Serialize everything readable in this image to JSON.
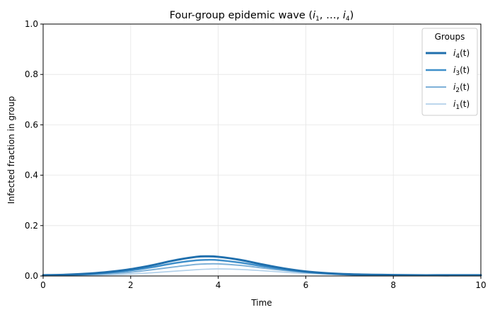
{
  "chart_data": {
    "type": "line",
    "title": "Four-group epidemic wave (",
    "title_math": [
      "i",
      "1",
      ", …, ",
      "i",
      "4",
      ")"
    ],
    "xlabel": "Time",
    "ylabel": "Infected fraction in group",
    "xlim": [
      0,
      10
    ],
    "ylim": [
      0,
      1
    ],
    "xticks": [
      "0",
      "2",
      "4",
      "6",
      "8",
      "10"
    ],
    "yticks": [
      "0.0",
      "0.2",
      "0.4",
      "0.6",
      "0.8",
      "1.0"
    ],
    "grid": true,
    "legend": {
      "title": "Groups",
      "placement": "top-right"
    },
    "x": [
      0,
      0.5,
      1,
      1.5,
      2,
      2.5,
      3,
      3.5,
      3.75,
      4,
      4.5,
      5,
      5.5,
      6,
      6.5,
      7,
      7.5,
      8,
      8.5,
      9,
      9.5,
      10
    ],
    "series": [
      {
        "name": "i4(t)",
        "label_main": "i",
        "label_sub": "4",
        "label_tail": "(t)",
        "color": "#1f6fad",
        "width": 3.0,
        "values": [
          0.003,
          0.005,
          0.009,
          0.016,
          0.027,
          0.043,
          0.062,
          0.076,
          0.078,
          0.076,
          0.064,
          0.046,
          0.03,
          0.018,
          0.011,
          0.007,
          0.005,
          0.004,
          0.003,
          0.003,
          0.003,
          0.003
        ]
      },
      {
        "name": "i3(t)",
        "label_main": "i",
        "label_sub": "3",
        "label_tail": "(t)",
        "color": "#3f8fca",
        "width": 2.5,
        "values": [
          0.002,
          0.004,
          0.007,
          0.013,
          0.022,
          0.035,
          0.051,
          0.062,
          0.064,
          0.063,
          0.053,
          0.039,
          0.026,
          0.016,
          0.01,
          0.006,
          0.004,
          0.003,
          0.003,
          0.002,
          0.002,
          0.002
        ]
      },
      {
        "name": "i2(t)",
        "label_main": "i",
        "label_sub": "2",
        "label_tail": "(t)",
        "color": "#7eb1d8",
        "width": 2.0,
        "values": [
          0.001,
          0.003,
          0.005,
          0.009,
          0.015,
          0.025,
          0.036,
          0.046,
          0.048,
          0.048,
          0.042,
          0.032,
          0.022,
          0.014,
          0.009,
          0.005,
          0.004,
          0.003,
          0.002,
          0.002,
          0.002,
          0.002
        ]
      },
      {
        "name": "i1(t)",
        "label_main": "i",
        "label_sub": "1",
        "label_tail": "(t)",
        "color": "#b3d1ea",
        "width": 1.7,
        "values": [
          0.001,
          0.002,
          0.003,
          0.005,
          0.008,
          0.013,
          0.019,
          0.025,
          0.027,
          0.028,
          0.026,
          0.021,
          0.015,
          0.01,
          0.007,
          0.004,
          0.003,
          0.002,
          0.002,
          0.001,
          0.001,
          0.001
        ]
      }
    ]
  }
}
